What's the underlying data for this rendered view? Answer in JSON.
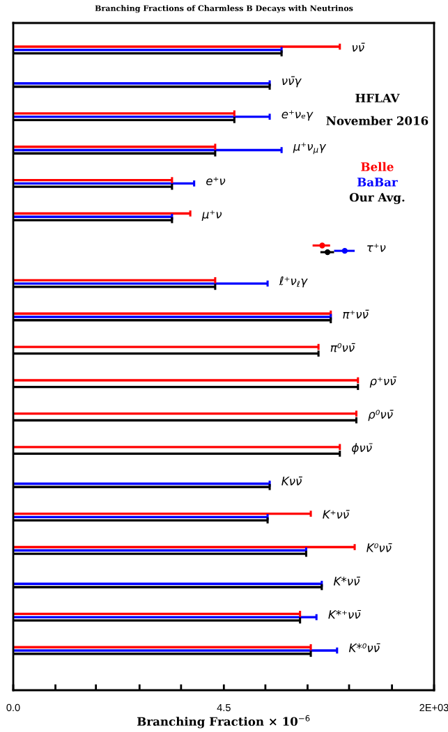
{
  "chart_data": {
    "type": "bar",
    "orientation": "horizontal",
    "title": "Branching Fractions of Charmless B Decays with Neutrinos",
    "xlabel": "Branching Fraction × 10$^{−6}$",
    "categories": [
      "νν̄",
      "νν̄γ",
      "e⁺νₑγ",
      "μ⁺ν$_{μ}$γ",
      "e⁺ν",
      "μ⁺ν",
      "τ⁺ν",
      "ℓ⁺ν$_{ℓ}$γ",
      "π⁺νν̄",
      "π⁰νν̄",
      "ρ⁺νν̄",
      "ρ⁰νν̄",
      "ϕνν̄",
      "Kνν̄",
      "K⁺νν̄",
      "K⁰νν̄",
      "K*νν̄",
      "K*⁺νν̄",
      "K*⁰νν̄"
    ],
    "series": [
      {
        "name": "Belle",
        "color": "#ff0000",
        "values": [
          130,
          null,
          6.1,
          3.5,
          1.0,
          1.7,
          null,
          3.5,
          100,
          70,
          220,
          210,
          130,
          null,
          56,
          200,
          null,
          41,
          56
        ]
      },
      {
        "name": "BaBar",
        "color": "#0000ff",
        "values": [
          24,
          17,
          17,
          24,
          1.9,
          1.0,
          null,
          16,
          100,
          null,
          null,
          null,
          null,
          17,
          16,
          49,
          77,
          66,
          120
        ]
      },
      {
        "name": "Our Avg.",
        "color": "#000000",
        "values": [
          24,
          17,
          6.1,
          3.5,
          1.0,
          1.0,
          null,
          3.5,
          100,
          70,
          220,
          210,
          130,
          17,
          16,
          49,
          77,
          41,
          56
        ]
      },
      {
        "type": "scatter",
        "color": "#ff0000",
        "values": [
          null,
          null,
          null,
          null,
          null,
          null,
          78,
          null,
          null,
          null,
          null,
          null,
          null,
          null,
          null,
          null,
          null,
          null,
          null
        ],
        "errors": [
          null,
          null,
          null,
          null,
          null,
          null,
          [
            59,
            98
          ],
          null,
          null,
          null,
          null,
          null,
          null,
          null,
          null,
          null,
          null,
          null,
          null
        ]
      },
      {
        "type": "scatter",
        "color": "#0000ff",
        "values": [
          null,
          null,
          null,
          null,
          null,
          null,
          150,
          null,
          null,
          null,
          null,
          null,
          null,
          null,
          null,
          null,
          null,
          null,
          null
        ],
        "errors": [
          null,
          null,
          null,
          null,
          null,
          null,
          [
            110,
            200
          ],
          null,
          null,
          null,
          null,
          null,
          null,
          null,
          null,
          null,
          null,
          null,
          null
        ]
      },
      {
        "type": "scatter",
        "color": "#000000",
        "values": [
          null,
          null,
          null,
          null,
          null,
          null,
          91,
          null,
          null,
          null,
          null,
          null,
          null,
          null,
          null,
          null,
          null,
          null,
          null
        ],
        "errors": [
          null,
          null,
          null,
          null,
          null,
          null,
          [
            74,
            110
          ],
          null,
          null,
          null,
          null,
          null,
          null,
          null,
          null,
          null,
          null,
          null,
          null
        ]
      }
    ],
    "log": "x",
    "xlim": [
      0.01,
      2000
    ],
    "xticks": [
      {
        "value": 0.01,
        "label": "0.0"
      },
      {
        "value": 0.034,
        "label": null
      },
      {
        "value": 0.11,
        "label": null
      },
      {
        "value": 0.39,
        "label": null
      },
      {
        "value": 1.3,
        "label": null
      },
      {
        "value": 4.5,
        "label": "4.5"
      },
      {
        "value": 15,
        "label": null
      },
      {
        "value": 51,
        "label": null
      },
      {
        "value": 170,
        "label": null
      },
      {
        "value": 590,
        "label": null
      },
      {
        "value": 2000,
        "label": "2E+03"
      }
    ],
    "tick_labels": "x",
    "grid": false,
    "legend": "right",
    "marker": "circle",
    "annotations": [
      "HFLAV",
      "November 2016"
    ]
  }
}
